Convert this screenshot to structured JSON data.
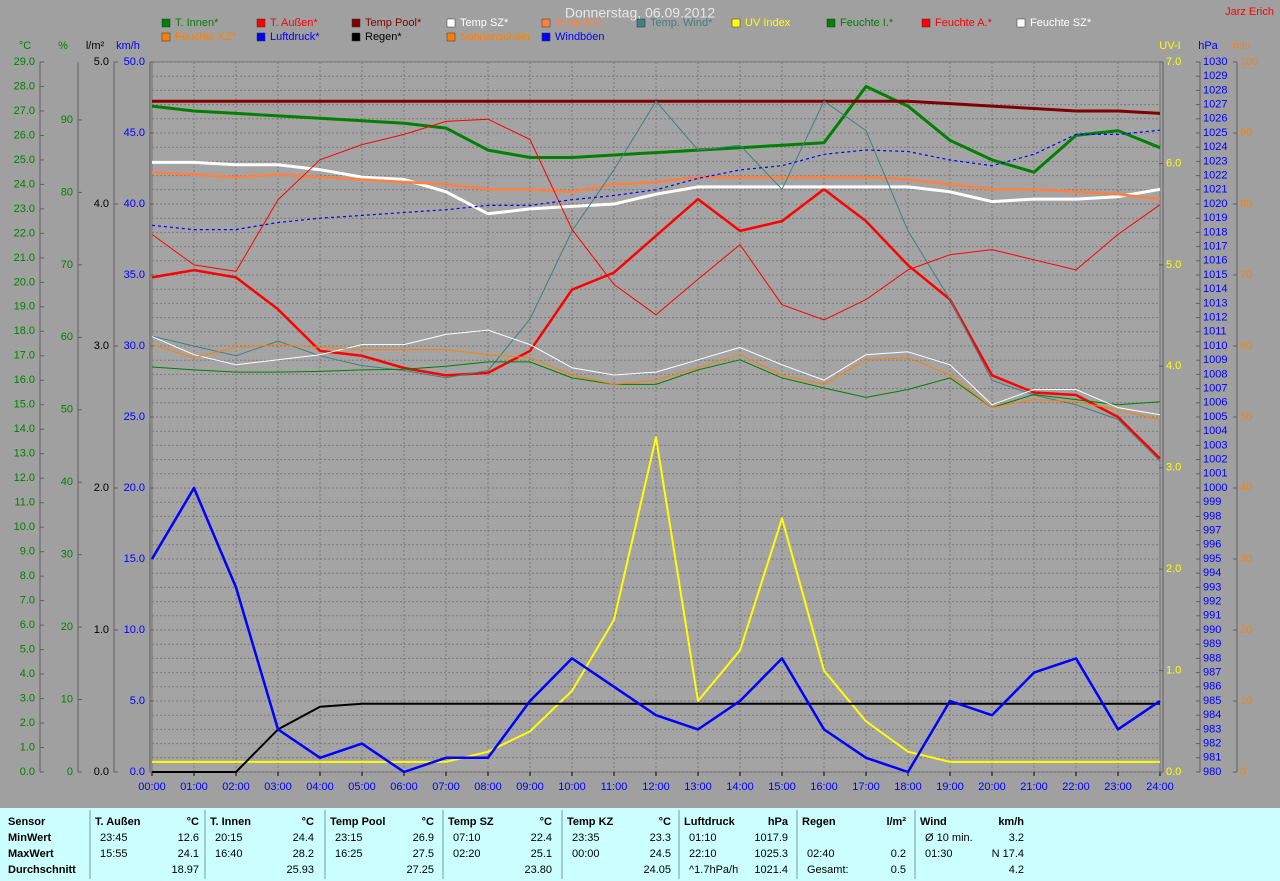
{
  "chart_data": {
    "type": "line",
    "title": "Donnerstag, 06.09.2012",
    "author": "Jarz Erich",
    "xlim": [
      0,
      24
    ],
    "xticks": [
      {
        "value": 0,
        "label": "00:00"
      },
      {
        "value": 1,
        "label": "01:00"
      },
      {
        "value": 2,
        "label": "02:00"
      },
      {
        "value": 3,
        "label": "03:00"
      },
      {
        "value": 4,
        "label": "04:00"
      },
      {
        "value": 5,
        "label": "05:00"
      },
      {
        "value": 6,
        "label": "06:00"
      },
      {
        "value": 7,
        "label": "07:00"
      },
      {
        "value": 8,
        "label": "08:00"
      },
      {
        "value": 9,
        "label": "09:00"
      },
      {
        "value": 10,
        "label": "10:00"
      },
      {
        "value": 11,
        "label": "11:00"
      },
      {
        "value": 12,
        "label": "12:00"
      },
      {
        "value": 13,
        "label": "13:00"
      },
      {
        "value": 14,
        "label": "14:00"
      },
      {
        "value": 15,
        "label": "15:00"
      },
      {
        "value": 16,
        "label": "16:00"
      },
      {
        "value": 17,
        "label": "17:00"
      },
      {
        "value": 18,
        "label": "18:00"
      },
      {
        "value": 19,
        "label": "19:00"
      },
      {
        "value": 20,
        "label": "20:00"
      },
      {
        "value": 21,
        "label": "21:00"
      },
      {
        "value": 22,
        "label": "22:00"
      },
      {
        "value": 23,
        "label": "23:00"
      },
      {
        "value": 24,
        "label": "24:00"
      }
    ],
    "x": [
      0,
      1,
      2,
      3,
      4,
      5,
      6,
      7,
      8,
      9,
      10,
      11,
      12,
      13,
      14,
      15,
      16,
      17,
      18,
      19,
      20,
      21,
      22,
      23,
      24
    ],
    "grid": true,
    "grid_axis": 5,
    "axes": [
      {
        "label": "°C",
        "color": "#008000",
        "side": "left",
        "lim": [
          0,
          29
        ],
        "ticks": [
          {
            "value": 0,
            "label": "0.0"
          },
          {
            "value": 1,
            "label": "1.0"
          },
          {
            "value": 2,
            "label": "2.0"
          },
          {
            "value": 3,
            "label": "3.0"
          },
          {
            "value": 4,
            "label": "4.0"
          },
          {
            "value": 5,
            "label": "5.0"
          },
          {
            "value": 6,
            "label": "6.0"
          },
          {
            "value": 7,
            "label": "7.0"
          },
          {
            "value": 8,
            "label": "8.0"
          },
          {
            "value": 9,
            "label": "9.0"
          },
          {
            "value": 10,
            "label": "10.0"
          },
          {
            "value": 11,
            "label": "11.0"
          },
          {
            "value": 12,
            "label": "12.0"
          },
          {
            "value": 13,
            "label": "13.0"
          },
          {
            "value": 14,
            "label": "14.0"
          },
          {
            "value": 15,
            "label": "15.0"
          },
          {
            "value": 16,
            "label": "16.0"
          },
          {
            "value": 17,
            "label": "17.0"
          },
          {
            "value": 18,
            "label": "18.0"
          },
          {
            "value": 19,
            "label": "19.0"
          },
          {
            "value": 20,
            "label": "20.0"
          },
          {
            "value": 21,
            "label": "21.0"
          },
          {
            "value": 22,
            "label": "22.0"
          },
          {
            "value": 23,
            "label": "23.0"
          },
          {
            "value": 24,
            "label": "24.0"
          },
          {
            "value": 25,
            "label": "25.0"
          },
          {
            "value": 26,
            "label": "26.0"
          },
          {
            "value": 27,
            "label": "27.0"
          },
          {
            "value": 28,
            "label": "28.0"
          },
          {
            "value": 29,
            "label": "29.0"
          }
        ]
      },
      {
        "label": "%",
        "color": "#008000",
        "side": "left",
        "lim": [
          0,
          98
        ],
        "ticks": [
          0,
          10,
          20,
          30,
          40,
          50,
          60,
          70,
          80,
          90
        ]
      },
      {
        "label": "l/m²",
        "color": "#000000",
        "side": "left",
        "lim": [
          0,
          5
        ],
        "ticks": [
          {
            "value": 0,
            "label": "0.0"
          },
          {
            "value": 1,
            "label": "1.0"
          },
          {
            "value": 2,
            "label": "2.0"
          },
          {
            "value": 3,
            "label": "3.0"
          },
          {
            "value": 4,
            "label": "4.0"
          },
          {
            "value": 5,
            "label": "5.0"
          }
        ]
      },
      {
        "label": "km/h",
        "color": "#0000ff",
        "side": "left",
        "lim": [
          0,
          50
        ],
        "ticks": [
          {
            "value": 0,
            "label": "0.0"
          },
          {
            "value": 5,
            "label": "5.0"
          },
          {
            "value": 10,
            "label": "10.0"
          },
          {
            "value": 15,
            "label": "15.0"
          },
          {
            "value": 20,
            "label": "20.0"
          },
          {
            "value": 25,
            "label": "25.0"
          },
          {
            "value": 30,
            "label": "30.0"
          },
          {
            "value": 35,
            "label": "35.0"
          },
          {
            "value": 40,
            "label": "40.0"
          },
          {
            "value": 45,
            "label": "45.0"
          },
          {
            "value": 50,
            "label": "50.0"
          }
        ]
      },
      {
        "label": "UV-I",
        "color": "#ffff00",
        "side": "right",
        "lim": [
          0,
          7
        ],
        "ticks": [
          {
            "value": 0,
            "label": "0.0"
          },
          {
            "value": 1,
            "label": "1.0"
          },
          {
            "value": 2,
            "label": "2.0"
          },
          {
            "value": 3,
            "label": "3.0"
          },
          {
            "value": 4,
            "label": "4.0"
          },
          {
            "value": 5,
            "label": "5.0"
          },
          {
            "value": 6,
            "label": "6.0"
          },
          {
            "value": 7,
            "label": "7.0"
          }
        ]
      },
      {
        "label": "hPa",
        "color": "#0000ff",
        "side": "right",
        "lim": [
          980,
          1030
        ],
        "ticks": [
          980,
          981,
          982,
          983,
          984,
          985,
          986,
          987,
          988,
          989,
          990,
          991,
          992,
          993,
          994,
          995,
          996,
          997,
          998,
          999,
          1000,
          1001,
          1002,
          1003,
          1004,
          1005,
          1006,
          1007,
          1008,
          1009,
          1010,
          1011,
          1012,
          1013,
          1014,
          1015,
          1016,
          1017,
          1018,
          1019,
          1020,
          1021,
          1022,
          1023,
          1024,
          1025,
          1026,
          1027,
          1028,
          1029,
          1030
        ]
      },
      {
        "label": "min",
        "color": "#ff8000",
        "side": "right",
        "lim": [
          0,
          100
        ],
        "ticks": [
          0,
          10,
          20,
          30,
          40,
          50,
          60,
          70,
          80,
          90,
          100
        ]
      }
    ],
    "series": [
      {
        "name": "T. Innen*",
        "color": "#008000",
        "axis": 0,
        "values": [
          27.2,
          27.0,
          26.9,
          26.8,
          26.7,
          26.6,
          26.5,
          26.3,
          25.4,
          25.1,
          25.1,
          25.2,
          25.3,
          25.4,
          25.5,
          25.6,
          25.7,
          28.0,
          27.2,
          25.8,
          25.0,
          24.5,
          26.0,
          26.2,
          25.5
        ]
      },
      {
        "name": "T. Außen*",
        "color": "#ff0000",
        "axis": 0,
        "values": [
          20.2,
          20.5,
          20.2,
          18.9,
          17.2,
          17.0,
          16.5,
          16.2,
          16.3,
          17.2,
          19.7,
          20.4,
          21.9,
          23.4,
          22.1,
          22.5,
          23.8,
          22.5,
          20.7,
          19.3,
          16.2,
          15.5,
          15.4,
          14.5,
          12.8
        ]
      },
      {
        "name": "Temp Pool*",
        "color": "#800000",
        "axis": 0,
        "values": [
          27.4,
          27.4,
          27.4,
          27.4,
          27.4,
          27.4,
          27.4,
          27.4,
          27.4,
          27.4,
          27.4,
          27.4,
          27.4,
          27.4,
          27.4,
          27.4,
          27.4,
          27.4,
          27.4,
          27.3,
          27.2,
          27.1,
          27.0,
          27.0,
          26.9
        ]
      },
      {
        "name": "Temp SZ*",
        "color": "#ffffff",
        "axis": 0,
        "values": [
          24.9,
          24.9,
          24.8,
          24.8,
          24.6,
          24.3,
          24.2,
          23.7,
          22.8,
          23.0,
          23.1,
          23.2,
          23.6,
          23.9,
          23.9,
          23.9,
          23.9,
          23.9,
          23.9,
          23.7,
          23.3,
          23.4,
          23.4,
          23.5,
          23.8
        ]
      },
      {
        "name": "Temp KZ*",
        "color": "#ff8040",
        "axis": 0,
        "values": [
          24.5,
          24.4,
          24.3,
          24.4,
          24.3,
          24.2,
          24.1,
          24.0,
          23.8,
          23.8,
          23.7,
          24.0,
          24.1,
          24.3,
          24.3,
          24.3,
          24.3,
          24.3,
          24.2,
          24.0,
          23.8,
          23.8,
          23.7,
          23.6,
          23.4
        ]
      },
      {
        "name": "Temp. Wind*",
        "color": "#408080",
        "axis": 0,
        "values": [
          17.8,
          17.4,
          17.0,
          17.6,
          17.0,
          16.6,
          16.4,
          16.1,
          16.4,
          18.5,
          22.1,
          24.6,
          27.4,
          25.4,
          25.6,
          23.8,
          27.4,
          26.2,
          22.1,
          19.3,
          16.0,
          15.4,
          15.0,
          14.4,
          12.7
        ]
      },
      {
        "name": "UV Index",
        "color": "#ffff00",
        "axis": 4,
        "values": [
          0.1,
          0.1,
          0.1,
          0.1,
          0.1,
          0.1,
          0.1,
          0.1,
          0.2,
          0.4,
          0.8,
          1.5,
          3.3,
          0.7,
          1.2,
          2.5,
          1.0,
          0.5,
          0.2,
          0.1,
          0.1,
          0.1,
          0.1,
          0.1,
          0.1
        ]
      },
      {
        "name": "Feuchte I.*",
        "color": "#008000",
        "axis": 1,
        "values": [
          55.9,
          55.5,
          55.2,
          55.2,
          55.3,
          55.5,
          55.6,
          56.0,
          56.6,
          56.6,
          54.4,
          53.5,
          53.5,
          55.5,
          56.9,
          54.4,
          53.0,
          51.7,
          52.8,
          54.4,
          50.3,
          52.1,
          51.4,
          50.7,
          51.1
        ]
      },
      {
        "name": "Feuchte A.*",
        "color": "#ff0000",
        "axis": 1,
        "values": [
          74.2,
          70.0,
          69.1,
          79.0,
          84.5,
          86.6,
          88.0,
          89.8,
          90.1,
          87.3,
          74.9,
          67.3,
          63.1,
          68.0,
          72.8,
          64.5,
          62.4,
          65.2,
          69.3,
          71.4,
          72.1,
          70.7,
          69.3,
          74.2,
          78.3
        ]
      },
      {
        "name": "Feuchte SZ*",
        "color": "#ffffff",
        "axis": 1,
        "values": [
          60.1,
          57.6,
          56.2,
          56.9,
          57.6,
          59.0,
          59.0,
          60.4,
          61.0,
          59.0,
          55.8,
          54.8,
          55.2,
          56.9,
          58.6,
          56.2,
          54.1,
          57.6,
          58.0,
          56.2,
          50.7,
          52.8,
          52.8,
          50.3,
          49.3
        ]
      },
      {
        "name": "Feuchte KZ*",
        "color": "#ff8000",
        "axis": 1,
        "values": [
          59.0,
          57.2,
          58.6,
          59.0,
          58.6,
          58.3,
          58.3,
          58.3,
          57.6,
          57.2,
          54.8,
          53.5,
          54.1,
          55.8,
          57.6,
          54.8,
          53.5,
          56.9,
          57.2,
          54.8,
          50.3,
          51.4,
          51.1,
          50.0,
          48.6
        ]
      },
      {
        "name": "Luftdruck*",
        "color": "#0000ff",
        "axis": 5,
        "values": [
          1018.5,
          1018.2,
          1018.2,
          1018.7,
          1019.0,
          1019.2,
          1019.4,
          1019.6,
          1019.9,
          1019.9,
          1020.3,
          1020.6,
          1021.0,
          1021.8,
          1022.4,
          1022.7,
          1023.5,
          1023.8,
          1023.7,
          1023.1,
          1022.7,
          1023.5,
          1024.9,
          1024.9,
          1025.2
        ]
      },
      {
        "name": "Regen*",
        "color": "#000000",
        "axis": 2,
        "values": [
          0,
          0,
          0,
          0.3,
          0.46,
          0.48,
          0.48,
          0.48,
          0.48,
          0.48,
          0.48,
          0.48,
          0.48,
          0.48,
          0.48,
          0.48,
          0.48,
          0.48,
          0.48,
          0.48,
          0.48,
          0.48,
          0.48,
          0.48,
          0.48
        ]
      },
      {
        "name": "Sonnenschein",
        "color": "#ff8000",
        "axis": 6,
        "values": [
          null,
          null,
          null,
          null,
          null,
          null,
          null,
          null,
          null,
          null,
          null,
          null,
          null,
          null,
          null,
          null,
          null,
          null,
          null,
          null,
          null,
          null,
          null,
          null,
          null
        ]
      },
      {
        "name": "Windböen",
        "color": "#0000ff",
        "axis": 3,
        "values": [
          15,
          20,
          13,
          3,
          1,
          2,
          0,
          1,
          1,
          5,
          8,
          6,
          4,
          3,
          5,
          8,
          3,
          1,
          0,
          5,
          4,
          7,
          8,
          3,
          5
        ]
      }
    ]
  },
  "table": {
    "row_labels": [
      "Sensor",
      "MinWert",
      "MaxWert",
      "Durchschnitt"
    ],
    "groups": [
      {
        "name": "T. Außen",
        "unit": "°C",
        "rows": [
          [
            "23:45",
            "12.6"
          ],
          [
            "15:55",
            "24.1"
          ],
          [
            null,
            "18.97"
          ]
        ]
      },
      {
        "name": "T. Innen",
        "unit": "°C",
        "rows": [
          [
            "20:15",
            "24.4"
          ],
          [
            "16:40",
            "28.2"
          ],
          [
            null,
            "25.93"
          ]
        ]
      },
      {
        "name": "Temp Pool",
        "unit": "°C",
        "rows": [
          [
            "23:15",
            "26.9"
          ],
          [
            "16:25",
            "27.5"
          ],
          [
            null,
            "27.25"
          ]
        ]
      },
      {
        "name": "Temp SZ",
        "unit": "°C",
        "rows": [
          [
            "07:10",
            "22.4"
          ],
          [
            "02:20",
            "25.1"
          ],
          [
            null,
            "23.80"
          ]
        ]
      },
      {
        "name": "Temp KZ",
        "unit": "°C",
        "rows": [
          [
            "23:35",
            "23.3"
          ],
          [
            "00:00",
            "24.5"
          ],
          [
            null,
            "24.05"
          ]
        ]
      },
      {
        "name": "Luftdruck",
        "unit": "hPa",
        "rows": [
          [
            "01:10",
            "1017.9"
          ],
          [
            "22:10",
            "1025.3"
          ],
          [
            "^1.7hPa/h",
            "1021.4"
          ]
        ]
      },
      {
        "name": "Regen",
        "unit": "l/m²",
        "rows": [
          [
            null,
            null
          ],
          [
            "02:40",
            "0.2"
          ],
          [
            "Gesamt:",
            "0.5"
          ]
        ]
      },
      {
        "name": "Wind",
        "unit": "km/h",
        "rows": [
          [
            "Ø 10 min.",
            "3.2"
          ],
          [
            "01:30",
            "N 17.4"
          ],
          [
            null,
            "4.2"
          ]
        ]
      }
    ]
  }
}
